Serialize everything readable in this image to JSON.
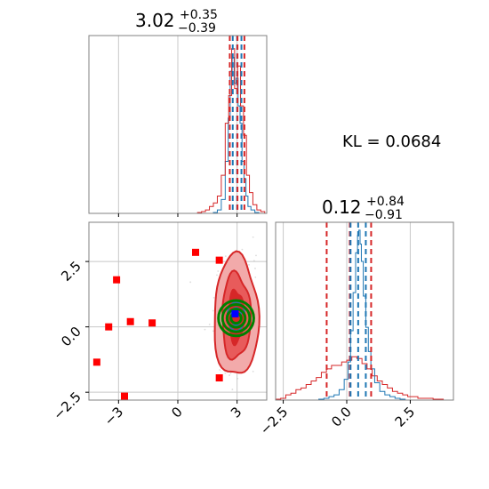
{
  "kl_label": "KL = 0.0684",
  "colors": {
    "red": "#d62728",
    "blue": "#1f77b4",
    "green": "#008000",
    "marker_red": "#ff0000",
    "marker_blue": "#0000ff",
    "grid": "#c8c8c8",
    "frame": "#808080"
  },
  "chart_data": {
    "type": "corner",
    "parameters": [
      {
        "title_main": "3.02",
        "title_sup": "+0.35",
        "title_sub": "−0.39",
        "range": [
          -4.5,
          4.5
        ],
        "ticks": [
          -3,
          0,
          3
        ],
        "tick_labels": [
          "−3",
          "0",
          "3"
        ]
      },
      {
        "title_main": "0.12",
        "title_sup": "+0.84",
        "title_sub": "−0.91",
        "range": [
          -2.8,
          4.2
        ],
        "ticks": [
          -2.5,
          0.0,
          2.5
        ],
        "tick_labels": [
          "−2.5",
          "0.0",
          "2.5"
        ]
      }
    ],
    "scatter_y_range": [
      -2.8,
      4.0
    ],
    "scatter_y_ticks": [
      -2.5,
      0.0,
      2.5
    ],
    "scatter_y_tick_labels": [
      "−2.5",
      "0.0",
      "2.5"
    ],
    "quantile_lines": {
      "param1": {
        "red": [
          2.63,
          3.02,
          3.37
        ],
        "blue": [
          2.78,
          3.0,
          3.22
        ]
      },
      "param2": {
        "red": [
          -0.79,
          0.12,
          0.96
        ],
        "blue": [
          0.15,
          0.45,
          0.75
        ]
      }
    },
    "histograms": {
      "param1": {
        "red": {
          "x": [
            1.1,
            1.3,
            1.5,
            1.7,
            1.9,
            2.1,
            2.3,
            2.5,
            2.65,
            2.8,
            2.95,
            3.1,
            3.25,
            3.4,
            3.55,
            3.7,
            3.9,
            4.1,
            4.3
          ],
          "y": [
            0.005,
            0.01,
            0.02,
            0.04,
            0.06,
            0.1,
            0.22,
            0.52,
            0.68,
            0.95,
            0.72,
            0.85,
            0.62,
            0.45,
            0.22,
            0.12,
            0.05,
            0.02,
            0.01
          ]
        },
        "blue": {
          "x": [
            1.9,
            2.1,
            2.3,
            2.5,
            2.6,
            2.7,
            2.8,
            2.9,
            3.0,
            3.1,
            3.2,
            3.3,
            3.4,
            3.5,
            3.6,
            3.8,
            4.0
          ],
          "y": [
            0.005,
            0.02,
            0.08,
            0.3,
            0.55,
            0.82,
            0.9,
            0.75,
            0.78,
            0.62,
            0.52,
            0.3,
            0.2,
            0.1,
            0.04,
            0.02,
            0.005
          ]
        }
      },
      "param2": {
        "red": {
          "x": [
            -2.7,
            -2.5,
            -2.3,
            -2.1,
            -1.9,
            -1.7,
            -1.5,
            -1.3,
            -1.1,
            -0.9,
            -0.7,
            -0.5,
            -0.3,
            -0.1,
            0.1,
            0.3,
            0.5,
            0.7,
            0.9,
            1.1,
            1.3,
            1.5,
            1.7,
            1.9,
            2.1,
            2.3,
            2.5,
            2.7,
            2.9,
            3.1,
            3.3,
            3.5,
            3.7
          ],
          "y": [
            0.005,
            0.01,
            0.03,
            0.04,
            0.06,
            0.07,
            0.09,
            0.11,
            0.13,
            0.16,
            0.18,
            0.2,
            0.2,
            0.22,
            0.23,
            0.25,
            0.24,
            0.21,
            0.18,
            0.14,
            0.11,
            0.09,
            0.07,
            0.05,
            0.04,
            0.03,
            0.02,
            0.02,
            0.01,
            0.01,
            0.01,
            0.005,
            0.005
          ]
        },
        "blue": {
          "x": [
            -1.0,
            -0.8,
            -0.6,
            -0.4,
            -0.2,
            0.0,
            0.1,
            0.2,
            0.3,
            0.4,
            0.45,
            0.5,
            0.55,
            0.6,
            0.7,
            0.8,
            0.9,
            1.0,
            1.2,
            1.4,
            1.6,
            1.8,
            2.0,
            2.2
          ],
          "y": [
            0.005,
            0.01,
            0.02,
            0.03,
            0.06,
            0.12,
            0.22,
            0.4,
            0.62,
            0.85,
            0.95,
            0.98,
            0.9,
            0.8,
            0.6,
            0.42,
            0.28,
            0.18,
            0.1,
            0.05,
            0.03,
            0.02,
            0.01,
            0.005
          ]
        }
      }
    },
    "outlier_points_red": [
      {
        "x": -3.5,
        "y": 0.0
      },
      {
        "x": -3.1,
        "y": 1.8
      },
      {
        "x": -2.4,
        "y": 0.2
      },
      {
        "x": -1.3,
        "y": 0.15
      },
      {
        "x": 0.9,
        "y": 2.85
      },
      {
        "x": 2.1,
        "y": 2.55
      },
      {
        "x": -4.1,
        "y": -1.35
      },
      {
        "x": -2.7,
        "y": -2.65
      },
      {
        "x": 2.1,
        "y": -1.95
      }
    ],
    "point_blue": {
      "x": 2.9,
      "y": 0.5
    },
    "contour_center": {
      "x": 2.95,
      "y": 0.4
    },
    "green_rings_radii": [
      0.18,
      0.32,
      0.48,
      0.62
    ]
  }
}
